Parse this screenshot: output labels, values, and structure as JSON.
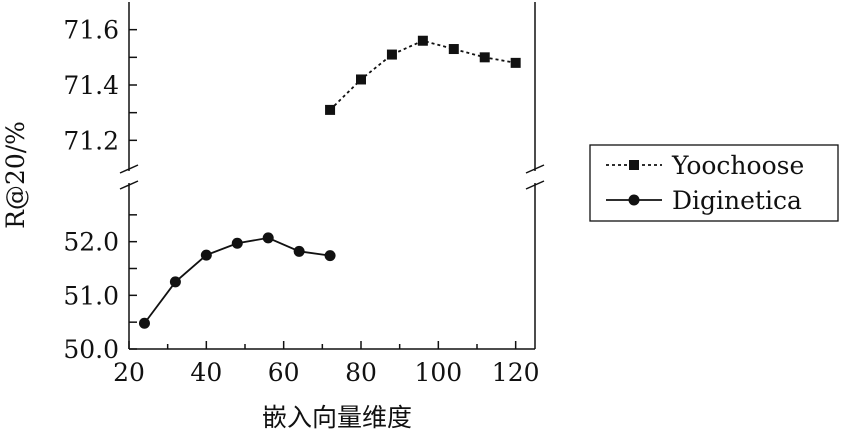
{
  "chart_data": {
    "type": "line",
    "title": "",
    "xlabel": "嵌入向量维度",
    "ylabel": "R@20/%",
    "xlim": [
      20,
      125
    ],
    "x_ticks": [
      20,
      40,
      60,
      80,
      100,
      120
    ],
    "y_axis_break": true,
    "y_upper_range": [
      71.1,
      71.7
    ],
    "y_upper_ticks": [
      "71.2",
      "71.4",
      "71.6"
    ],
    "y_lower_range": [
      50.0,
      53.0
    ],
    "y_lower_ticks": [
      "50.0",
      "51.0",
      "52.0"
    ],
    "grid": false,
    "legend_position": "right",
    "series": [
      {
        "name": "Yoochoose",
        "marker": "square",
        "line_style": "dotted",
        "x": [
          72,
          80,
          88,
          96,
          104,
          112,
          120
        ],
        "y": [
          71.31,
          71.42,
          71.51,
          71.56,
          71.53,
          71.5,
          71.48
        ]
      },
      {
        "name": "Diginetica",
        "marker": "circle",
        "line_style": "solid",
        "x": [
          24,
          32,
          40,
          48,
          56,
          64,
          72
        ],
        "y": [
          50.48,
          51.25,
          51.75,
          51.97,
          52.07,
          51.82,
          51.74
        ]
      }
    ]
  }
}
